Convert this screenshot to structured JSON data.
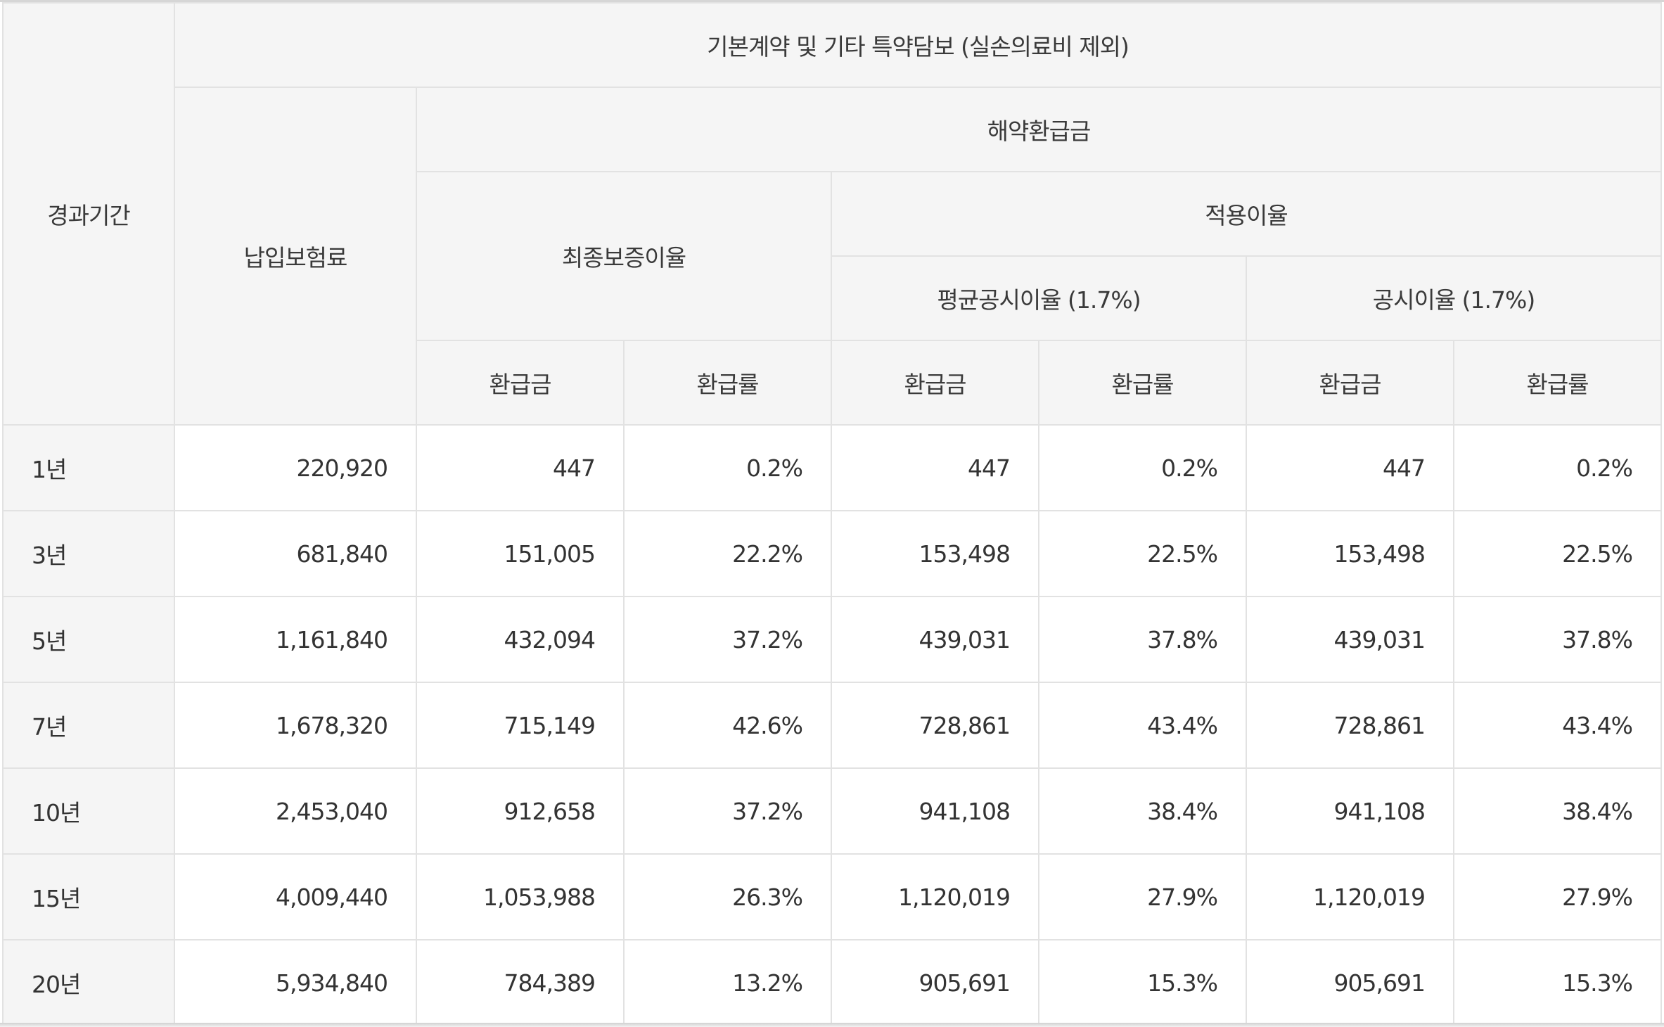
{
  "header": {
    "period": "경과기간",
    "main_group": "기본계약 및 기타 특약담보 (실손의료비 제외)",
    "premium": "납입보험료",
    "surrender": "해약환급금",
    "min_guaranteed": "최종보증이율",
    "applied": "적용이율",
    "avg_public": "평균공시이율 (1.7%)",
    "public": "공시이율 (1.7%)",
    "refund_amount": "환급금",
    "refund_rate": "환급률"
  },
  "rows": [
    {
      "period": "1년",
      "premium": "220,920",
      "min_amt": "447",
      "min_rate": "0.2%",
      "avg_amt": "447",
      "avg_rate": "0.2%",
      "pub_amt": "447",
      "pub_rate": "0.2%"
    },
    {
      "period": "3년",
      "premium": "681,840",
      "min_amt": "151,005",
      "min_rate": "22.2%",
      "avg_amt": "153,498",
      "avg_rate": "22.5%",
      "pub_amt": "153,498",
      "pub_rate": "22.5%"
    },
    {
      "period": "5년",
      "premium": "1,161,840",
      "min_amt": "432,094",
      "min_rate": "37.2%",
      "avg_amt": "439,031",
      "avg_rate": "37.8%",
      "pub_amt": "439,031",
      "pub_rate": "37.8%"
    },
    {
      "period": "7년",
      "premium": "1,678,320",
      "min_amt": "715,149",
      "min_rate": "42.6%",
      "avg_amt": "728,861",
      "avg_rate": "43.4%",
      "pub_amt": "728,861",
      "pub_rate": "43.4%"
    },
    {
      "period": "10년",
      "premium": "2,453,040",
      "min_amt": "912,658",
      "min_rate": "37.2%",
      "avg_amt": "941,108",
      "avg_rate": "38.4%",
      "pub_amt": "941,108",
      "pub_rate": "38.4%"
    },
    {
      "period": "15년",
      "premium": "4,009,440",
      "min_amt": "1,053,988",
      "min_rate": "26.3%",
      "avg_amt": "1,120,019",
      "avg_rate": "27.9%",
      "pub_amt": "1,120,019",
      "pub_rate": "27.9%"
    },
    {
      "period": "20년",
      "premium": "5,934,840",
      "min_amt": "784,389",
      "min_rate": "13.2%",
      "avg_amt": "905,691",
      "avg_rate": "15.3%",
      "pub_amt": "905,691",
      "pub_rate": "15.3%"
    }
  ],
  "colors": {
    "header_bg": "#f5f5f5",
    "border": "#e2e2e2",
    "text": "#333333"
  }
}
